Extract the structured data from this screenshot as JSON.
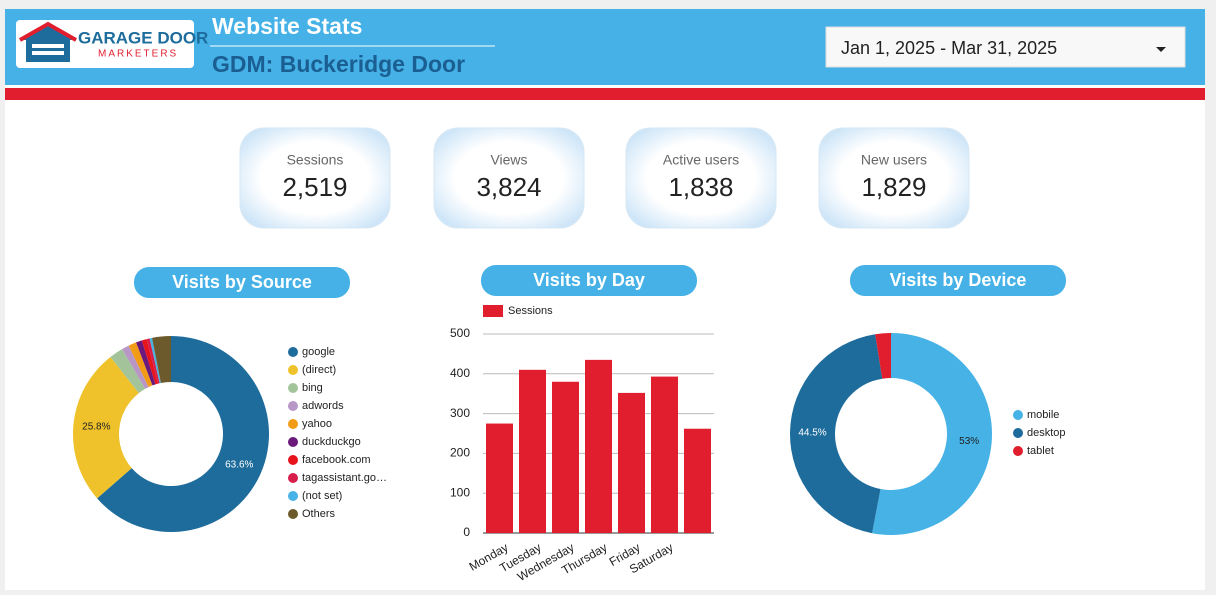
{
  "header": {
    "logo": {
      "line1": "GARAGE DOOR",
      "line2": "MARKETERS"
    },
    "title": "Website Stats",
    "subtitle": "GDM: Buckeridge Door",
    "date_range": "Jan 1, 2025 - Mar 31, 2025"
  },
  "kpis": [
    {
      "label": "Sessions",
      "value": "2,519"
    },
    {
      "label": "Views",
      "value": "3,824"
    },
    {
      "label": "Active users",
      "value": "1,838"
    },
    {
      "label": "New users",
      "value": "1,829"
    }
  ],
  "chart_data": [
    {
      "type": "donut",
      "title": "Visits by Source",
      "categories": [
        "google",
        "(direct)",
        "bing",
        "adwords",
        "yahoo",
        "duckduckgo",
        "facebook.com",
        "tagassistant.go…",
        "(not set)",
        "Others"
      ],
      "values": [
        63.6,
        25.8,
        2.3,
        1.2,
        1.3,
        1.0,
        0.8,
        0.5,
        0.4,
        3.1
      ],
      "value_labels": [
        "63.6%",
        "25.8%",
        null,
        null,
        null,
        null,
        null,
        null,
        null,
        null
      ],
      "colors": [
        "#1d6c9c",
        "#efc22b",
        "#a3c49b",
        "#b896c6",
        "#f29b16",
        "#6b1a7c",
        "#e8141c",
        "#d81f4c",
        "#46b2e6",
        "#6d5a2c"
      ]
    },
    {
      "type": "bar",
      "title": "Visits by Day",
      "categories": [
        "Monday",
        "Tuesday",
        "Wednesday",
        "Thursday",
        "Friday",
        "Saturday",
        null
      ],
      "series": [
        {
          "name": "Sessions",
          "color": "#e01e2e",
          "values": [
            275,
            410,
            380,
            435,
            352,
            393,
            262
          ]
        }
      ],
      "ylim": [
        0,
        500
      ],
      "yticks": [
        0,
        100,
        200,
        300,
        400,
        500
      ],
      "grid": true
    },
    {
      "type": "donut",
      "title": "Visits by Device",
      "categories": [
        "mobile",
        "desktop",
        "tablet"
      ],
      "values": [
        53,
        44.5,
        2.5
      ],
      "value_labels": [
        "53%",
        "44.5%",
        null
      ],
      "colors": [
        "#46b2e6",
        "#1d6c9c",
        "#e01e2e"
      ]
    }
  ]
}
